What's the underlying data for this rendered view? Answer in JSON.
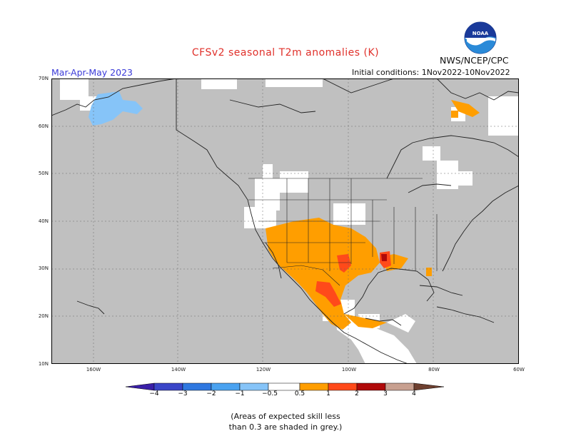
{
  "title": "CFSv2 seasonal T2m anomalies (K)",
  "period": "Mar-Apr-May 2023",
  "agency": "NWS/NCEP/CPC",
  "initial_conditions": "Initial conditions: 1Nov2022-10Nov2022",
  "logo_text": "NOAA",
  "lat_labels": [
    "70N",
    "60N",
    "50N",
    "40N",
    "30N",
    "20N",
    "10N"
  ],
  "lon_labels": [
    "160W",
    "140W",
    "120W",
    "100W",
    "80W",
    "60W"
  ],
  "colorbar": {
    "labels": [
      "−4",
      "−3",
      "−2",
      "−1",
      "−0.5",
      "0.5",
      "1",
      "2",
      "3",
      "4"
    ],
    "colors": [
      "#3a1fa8",
      "#3a46c8",
      "#2f78e0",
      "#4aa2f0",
      "#86c4f8",
      "#ffffff",
      "#ff9e00",
      "#ff4a1a",
      "#b00a0a",
      "#c8a090",
      "#6e4030"
    ]
  },
  "note_line1": "(Areas of expected skill less",
  "note_line2": "than 0.3 are shaded in grey.)",
  "colors": {
    "skill_grey": "#c0c0c0",
    "anom_0_5_1": "#ff9e00",
    "anom_1_2": "#ff4a1a",
    "anom_2_3": "#b00a0a",
    "anom_neg_1_0_5": "#86c4f8",
    "title_red": "#e0302a",
    "period_blue": "#3a3ad8"
  }
}
